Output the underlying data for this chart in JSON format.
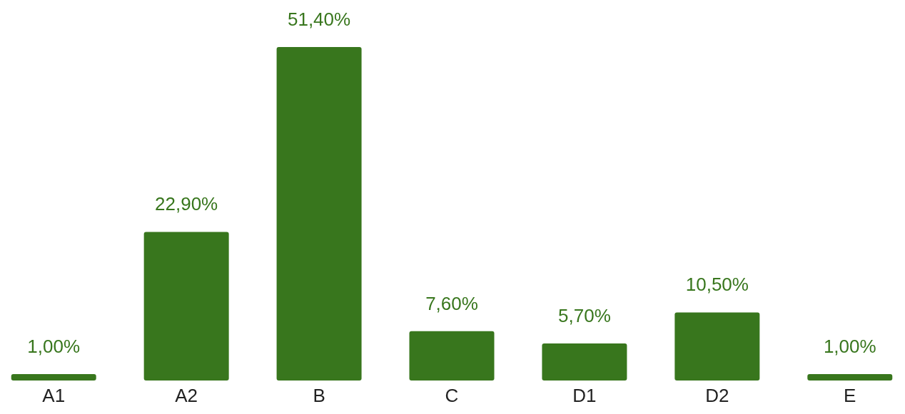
{
  "chart_data": {
    "type": "bar",
    "categories": [
      "A1",
      "A2",
      "B",
      "C",
      "D1",
      "D2",
      "E"
    ],
    "values": [
      1.0,
      22.9,
      51.4,
      7.6,
      5.7,
      10.5,
      1.0
    ],
    "value_labels": [
      "1,00%",
      "22,90%",
      "51,40%",
      "7,60%",
      "5,70%",
      "10,50%",
      "1,00%"
    ],
    "color": "#38761d"
  }
}
